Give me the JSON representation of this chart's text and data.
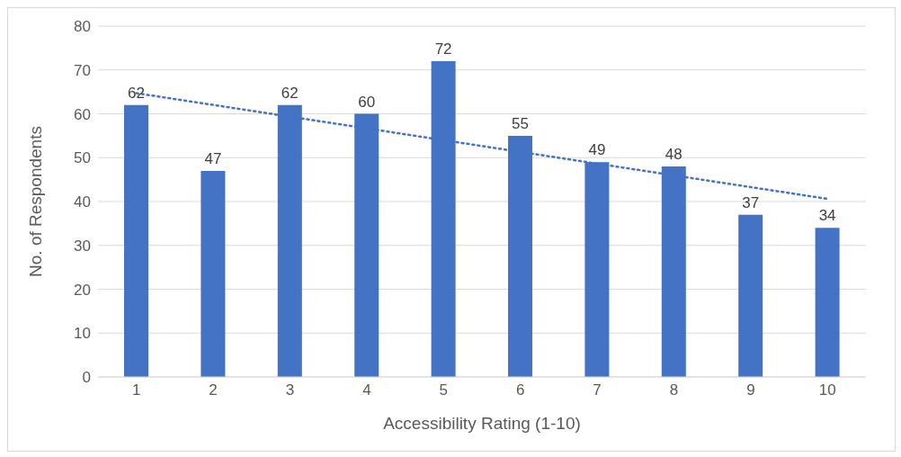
{
  "chart_data": {
    "type": "bar",
    "xlabel": "Accessibility Rating (1-10)",
    "ylabel": "No. of Respondents",
    "x": [
      1,
      2,
      3,
      4,
      5,
      6,
      7,
      8,
      9,
      10
    ],
    "series": [
      {
        "color": "#4472c4",
        "values": [
          62,
          47,
          62,
          60,
          72,
          55,
          49,
          48,
          37,
          34
        ],
        "value_labels": [
          "62",
          "47",
          "62",
          "60",
          "72",
          "55",
          "49",
          "48",
          "37",
          "34"
        ]
      },
      {
        "type": "line",
        "color": "#4472c4",
        "x": [
          1,
          10
        ],
        "values": [
          64.7,
          40.6
        ],
        "line_style": "dotted",
        "marker": "none"
      }
    ],
    "xlim": [
      0.5,
      10.5
    ],
    "xticks": [
      1,
      2,
      3,
      4,
      5,
      6,
      7,
      8,
      9,
      10
    ],
    "ylim": [
      0,
      80
    ],
    "yticks": [
      0,
      10,
      20,
      30,
      40,
      50,
      60,
      70,
      80
    ],
    "grid": "y",
    "legend": false
  }
}
